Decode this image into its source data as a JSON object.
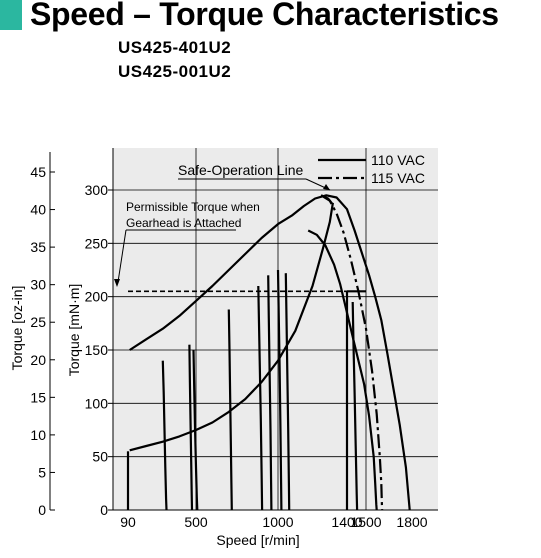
{
  "header": {
    "title": "Speed – Torque Characteristics",
    "models": [
      "US425-401U2",
      "US425-001U2"
    ]
  },
  "colors": {
    "accent": "#2bb7a0",
    "grid": "#000000",
    "plot_bg": "#ebebeb"
  },
  "chart_data": {
    "type": "line",
    "xlabel": "Speed [r/min]",
    "ylabel": "Torque [mN·m]",
    "ylabel2": "Torque [oz-in]",
    "xlim": [
      40,
      1850
    ],
    "ylim": [
      0,
      330
    ],
    "y2lim": [
      0,
      46.73
    ],
    "x_ticks": [
      90,
      500,
      1000,
      1400,
      1500,
      1800
    ],
    "x_tick_labels": [
      "90",
      "500",
      "1000",
      "1400",
      "1500",
      "1800"
    ],
    "y_ticks": [
      0,
      50,
      100,
      150,
      200,
      250,
      300
    ],
    "y_tick_labels": [
      "0",
      "50",
      "100",
      "150",
      "200",
      "250",
      "300"
    ],
    "y2_ticks": [
      0,
      5,
      10,
      15,
      20,
      25,
      30,
      35,
      40,
      45
    ],
    "y2_tick_labels": [
      "0",
      "5",
      "10",
      "15",
      "20",
      "25",
      "30",
      "35",
      "40",
      "45"
    ],
    "grid": true,
    "legend": {
      "placement": "top-right",
      "entries": [
        "110 VAC",
        "115 VAC"
      ]
    },
    "annotations": {
      "safe_operation": "Safe-Operation Line",
      "gearhead": [
        "Permissible Torque when",
        "Gearhead is Attached"
      ]
    },
    "series": [
      {
        "name": "110 VAC",
        "style": "solid",
        "x": [
          1175,
          1225,
          1275,
          1325,
          1360,
          1400,
          1440,
          1490,
          1520,
          1550,
          1560,
          1567,
          1570
        ],
        "y": [
          262,
          258,
          248,
          230,
          212,
          185,
          155,
          118,
          88,
          50,
          25,
          5,
          0
        ]
      },
      {
        "name": "115 VAC",
        "style": "dashdot",
        "x": [
          1250,
          1300,
          1340,
          1380,
          1420,
          1460,
          1500,
          1540,
          1570,
          1590,
          1600,
          1604,
          1605
        ],
        "y": [
          295,
          290,
          278,
          260,
          235,
          205,
          170,
          130,
          90,
          50,
          25,
          5,
          0
        ]
      },
      {
        "name": "110 VAC",
        "style": "solid",
        "x": [
          1785,
          1760,
          1720,
          1680,
          1640,
          1600,
          1560,
          1520,
          1480,
          1440,
          1400,
          1340,
          1280,
          1215,
          1150,
          1080,
          1000,
          900,
          800,
          700,
          600,
          500,
          400,
          300,
          200,
          100
        ],
        "y": [
          0,
          40,
          80,
          113,
          146,
          178,
          200,
          220,
          240,
          262,
          282,
          293,
          295,
          292,
          285,
          276,
          268,
          255,
          240,
          225,
          210,
          196,
          182,
          170,
          160,
          150
        ]
      },
      {
        "name": "115 VAC",
        "style": "dashdot",
        "x": [
          1250,
          1290,
          1320
        ],
        "y": [
          295,
          292,
          286
        ]
      },
      {
        "name": "Safe-Operation Line",
        "style": "solid",
        "x": [
          100,
          200,
          300,
          400,
          500,
          600,
          700,
          800,
          900,
          1000,
          1100,
          1200,
          1260,
          1300,
          1318
        ],
        "y": [
          56,
          60,
          64,
          69,
          75,
          82,
          92,
          104,
          120,
          140,
          168,
          210,
          245,
          270,
          288
        ]
      },
      {
        "name": "Permissible Torque when Gearhead is Attached",
        "style": "dashed",
        "x": [
          90,
          1400
        ],
        "y": [
          205,
          205
        ]
      },
      {
        "name": "Permissible Torque when Gearhead is Attached",
        "style": "solid",
        "x": [
          1400,
          1500
        ],
        "y": [
          205,
          205
        ]
      },
      {
        "name": "Speed control line 90",
        "style": "solid",
        "x": [
          90,
          90
        ],
        "y": [
          0,
          55
        ]
      },
      {
        "name": "Speed control line 300",
        "style": "solid",
        "x": [
          300,
          305,
          310,
          315,
          320,
          322
        ],
        "y": [
          140,
          110,
          75,
          40,
          10,
          0
        ]
      },
      {
        "name": "Speed control line 500a",
        "style": "solid",
        "x": [
          460,
          463,
          467,
          471,
          474,
          476
        ],
        "y": [
          155,
          120,
          85,
          45,
          15,
          0
        ]
      },
      {
        "name": "Speed control line 500b",
        "style": "solid",
        "x": [
          485,
          489,
          494,
          500,
          505,
          508
        ],
        "y": [
          150,
          115,
          78,
          40,
          12,
          0
        ]
      },
      {
        "name": "Speed control line 700",
        "style": "solid",
        "x": [
          700,
          704,
          708,
          712,
          716,
          718
        ],
        "y": [
          188,
          150,
          110,
          65,
          25,
          0
        ]
      },
      {
        "name": "Speed control line 900a",
        "style": "solid",
        "x": [
          880,
          884,
          889,
          895,
          900,
          903
        ],
        "y": [
          210,
          175,
          135,
          85,
          35,
          0
        ]
      },
      {
        "name": "Speed control line 900b",
        "style": "solid",
        "x": [
          940,
          944,
          949,
          954,
          958,
          960
        ],
        "y": [
          220,
          180,
          130,
          75,
          25,
          0
        ]
      },
      {
        "name": "Speed control line 1000a",
        "style": "solid",
        "x": [
          1000,
          1004,
          1009,
          1014,
          1018,
          1020
        ],
        "y": [
          225,
          185,
          135,
          80,
          25,
          0
        ]
      },
      {
        "name": "Speed control line 1000b",
        "style": "solid",
        "x": [
          1045,
          1049,
          1054,
          1059,
          1063,
          1065
        ],
        "y": [
          222,
          180,
          130,
          75,
          25,
          0
        ]
      },
      {
        "name": "Speed control line 1400a",
        "style": "solid",
        "x": [
          1400,
          1400
        ],
        "y": [
          205,
          0
        ]
      },
      {
        "name": "Speed control line 1400b",
        "style": "solid",
        "x": [
          1430,
          1434,
          1440,
          1446,
          1451,
          1453
        ],
        "y": [
          195,
          155,
          110,
          60,
          15,
          0
        ]
      }
    ]
  }
}
